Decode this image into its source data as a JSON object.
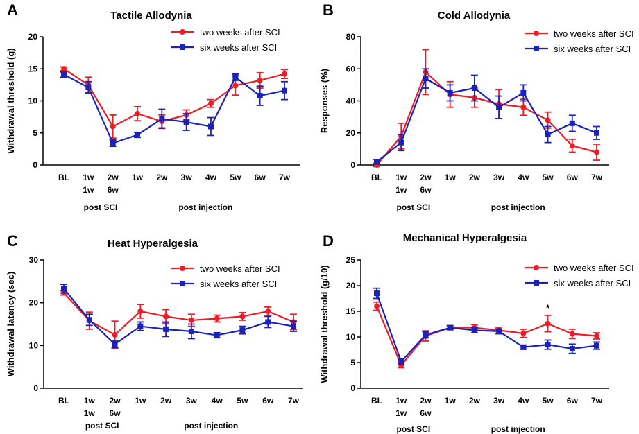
{
  "colors": {
    "red": "#ee1c24",
    "blue": "#1b22b8",
    "axis": "#000000"
  },
  "x_categories": [
    "BL",
    "1w",
    "2w",
    "1w",
    "2w",
    "3w",
    "4w",
    "5w",
    "6w",
    "7w"
  ],
  "x_second_row": [
    null,
    "1w",
    "6w",
    null,
    null,
    null,
    null,
    null,
    null,
    null
  ],
  "x_color_first_row": [
    "black",
    "red",
    "red",
    "black",
    "black",
    "black",
    "black",
    "black",
    "black",
    "black"
  ],
  "x_color_second_row": [
    null,
    "blue",
    "blue",
    null,
    null,
    null,
    null,
    null,
    null,
    null
  ],
  "group_labels": [
    "post SCI",
    "post injection"
  ],
  "chart_data": [
    {
      "type": "line",
      "panel_letter": "A",
      "title": "Tactile Allodynia",
      "ylabel": "Withdrawal threshold (g)",
      "ylim": [
        0,
        20
      ],
      "yticks": [
        0,
        5,
        10,
        15,
        20
      ],
      "legend_placement": "top-right",
      "annotations": [],
      "series": [
        {
          "name": "two weeks after SCI",
          "color": "red",
          "marker": "circle",
          "values": [
            15.0,
            12.5,
            6.0,
            8.0,
            6.8,
            7.8,
            9.6,
            12.4,
            13.2,
            14.2
          ],
          "errors": [
            0.3,
            1.2,
            1.8,
            1.1,
            1.0,
            0.8,
            0.6,
            1.5,
            1.2,
            0.7
          ]
        },
        {
          "name": "six weeks after SCI",
          "color": "blue",
          "marker": "square",
          "values": [
            14.1,
            12.1,
            3.4,
            4.7,
            7.2,
            6.7,
            6.0,
            13.7,
            10.8,
            11.6
          ],
          "errors": [
            0.4,
            0.9,
            0.5,
            0.4,
            1.5,
            1.3,
            1.4,
            0.5,
            1.5,
            1.4
          ]
        }
      ]
    },
    {
      "type": "line",
      "panel_letter": "B",
      "title": "Cold Allodynia",
      "ylabel": "Responses (%)",
      "ylim": [
        0,
        80
      ],
      "yticks": [
        0,
        20,
        40,
        60,
        80
      ],
      "legend_placement": "top-right",
      "annotations": [],
      "series": [
        {
          "name": "two weeks after SCI",
          "color": "red",
          "marker": "circle",
          "values": [
            0,
            18,
            58,
            44,
            42,
            38,
            36,
            28,
            12,
            8
          ],
          "errors": [
            1,
            8,
            14,
            8,
            6,
            9,
            5,
            5,
            4,
            5
          ]
        },
        {
          "name": "six weeks after SCI",
          "color": "blue",
          "marker": "square",
          "values": [
            2,
            14,
            54,
            45,
            48,
            36,
            45,
            19,
            26,
            20
          ],
          "errors": [
            1.5,
            5,
            6,
            5,
            8,
            7,
            5,
            5,
            5,
            4
          ]
        }
      ]
    },
    {
      "type": "line",
      "panel_letter": "C",
      "title": "Heat Hyperalgesia",
      "ylabel": "Withdrawal latency (sec)",
      "ylim": [
        0,
        30
      ],
      "yticks": [
        0,
        10,
        20,
        30
      ],
      "legend_placement": "top-right",
      "annotations": [],
      "series": [
        {
          "name": "two weeks after SCI",
          "color": "red",
          "marker": "circle",
          "values": [
            22.3,
            15.8,
            12.5,
            18.0,
            16.8,
            15.9,
            16.3,
            16.8,
            18.0,
            15.5
          ],
          "errors": [
            0.5,
            2.0,
            3.2,
            1.6,
            1.6,
            1.4,
            0.8,
            0.9,
            1.0,
            1.8
          ]
        },
        {
          "name": "six weeks after SCI",
          "color": "blue",
          "marker": "square",
          "values": [
            23.3,
            16.0,
            10.3,
            14.5,
            13.8,
            13.3,
            12.4,
            13.6,
            15.5,
            14.5
          ],
          "errors": [
            1.0,
            1.3,
            0.8,
            1.0,
            1.7,
            1.7,
            0.6,
            0.9,
            1.3,
            1.2
          ]
        }
      ]
    },
    {
      "type": "line",
      "panel_letter": "D",
      "title": "Mechanical Hyperalgesia",
      "ylabel": "Withdrawal threshold (g/10)",
      "ylim": [
        0,
        25
      ],
      "yticks": [
        0,
        5,
        10,
        15,
        20,
        25
      ],
      "legend_placement": "top-right",
      "annotations": [
        {
          "text": "*",
          "index": 7
        }
      ],
      "series": [
        {
          "name": "two weeks after SCI",
          "color": "red",
          "marker": "circle",
          "values": [
            16.0,
            4.5,
            10.2,
            11.8,
            11.8,
            11.3,
            10.7,
            12.6,
            10.6,
            10.2
          ],
          "errors": [
            0.8,
            0.5,
            1.0,
            0.4,
            0.6,
            0.6,
            0.8,
            1.6,
            0.9,
            0.6
          ]
        },
        {
          "name": "six weeks after SCI",
          "color": "blue",
          "marker": "square",
          "values": [
            18.5,
            5.2,
            10.4,
            11.8,
            11.3,
            11.1,
            8.0,
            8.5,
            7.7,
            8.3
          ],
          "errors": [
            1.0,
            0.5,
            0.6,
            0.4,
            0.5,
            0.5,
            0.4,
            0.9,
            0.9,
            0.7
          ]
        }
      ]
    }
  ]
}
